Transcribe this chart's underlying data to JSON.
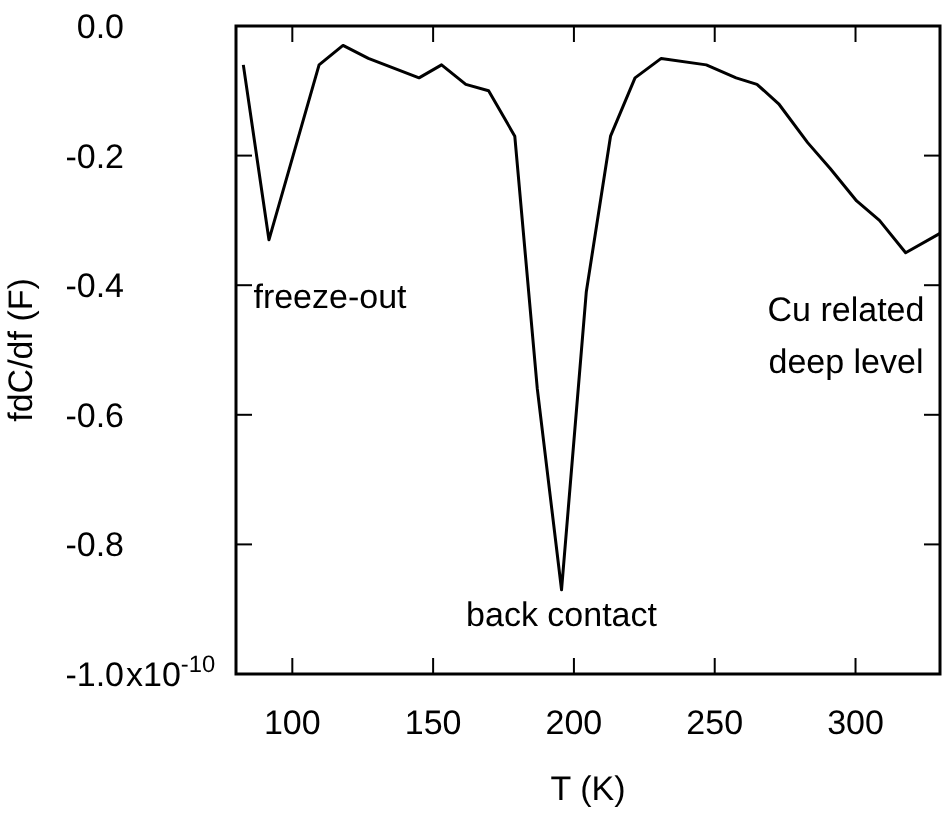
{
  "chart_data": {
    "type": "line",
    "xlabel": "T (K)",
    "ylabel": "fdC/df (F)",
    "x": [
      82.6,
      91.7,
      109.5,
      118,
      127,
      145,
      153,
      161.6,
      169.7,
      179,
      187,
      195.6,
      204.4,
      213,
      221.7,
      231,
      247,
      257.6,
      265,
      272.7,
      283,
      291,
      300.4,
      308.5,
      317.8,
      330
    ],
    "series": [
      {
        "color": "#000000",
        "values": [
          -0.06,
          -0.33,
          -0.06,
          -0.03,
          -0.05,
          -0.08,
          -0.06,
          -0.09,
          -0.1,
          -0.17,
          -0.56,
          -0.87,
          -0.41,
          -0.17,
          -0.08,
          -0.05,
          -0.06,
          -0.08,
          -0.09,
          -0.12,
          -0.18,
          -0.22,
          -0.27,
          -0.3,
          -0.35,
          -0.32
        ]
      }
    ],
    "xlim": [
      80,
      330
    ],
    "xticks": [
      100,
      150,
      200,
      250,
      300
    ],
    "ylim": [
      -1.0,
      0.0
    ],
    "yticks": [
      {
        "value": -1.0,
        "label": "-1.0"
      },
      -0.8,
      -0.6,
      -0.4,
      -0.2,
      {
        "value": 0,
        "label": "0.0"
      }
    ],
    "line_style": "solid",
    "annotations": [
      "x10$^{-10}$",
      {
        "text": "freeze-out",
        "x": 91.7,
        "y": -0.33
      },
      {
        "text": "back contact",
        "x": 195.6,
        "y": -0.87
      },
      {
        "text": "Cu related\ndeep level",
        "x": 317.8,
        "y": -0.35
      }
    ]
  }
}
